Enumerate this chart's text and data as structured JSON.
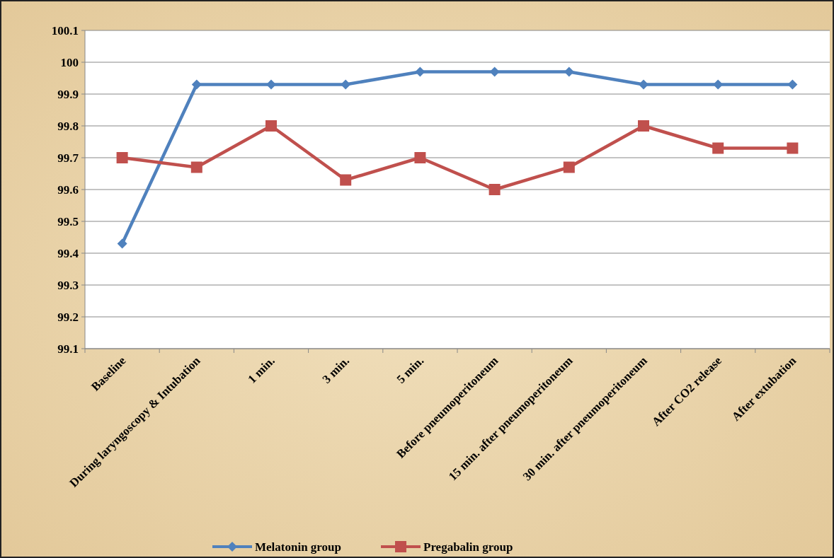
{
  "chart_data": {
    "type": "line",
    "categories": [
      "Baseline",
      "During laryngoscopy & Intubation",
      "1 min.",
      "3 min.",
      "5 min.",
      "Before pneumoperitoneum",
      "15 min. after pneumoperitoneum",
      "30 min. after pneumoperitoneum",
      "After CO2 release",
      "After extubation"
    ],
    "series": [
      {
        "name": "Melatonin group",
        "color": "#4f81bd",
        "marker": "diamond",
        "values": [
          99.43,
          99.93,
          99.93,
          99.93,
          99.97,
          99.97,
          99.97,
          99.93,
          99.93,
          99.93
        ]
      },
      {
        "name": "Pregabalin group",
        "color": "#c0504d",
        "marker": "square",
        "values": [
          99.7,
          99.67,
          99.8,
          99.63,
          99.7,
          99.6,
          99.67,
          99.8,
          99.73,
          99.73
        ]
      }
    ],
    "ylim": [
      99.1,
      100.1
    ],
    "yticks": [
      99.1,
      99.2,
      99.3,
      99.4,
      99.5,
      99.6,
      99.7,
      99.8,
      99.9,
      100,
      100.1
    ],
    "grid": "y",
    "legend": "bottom"
  }
}
